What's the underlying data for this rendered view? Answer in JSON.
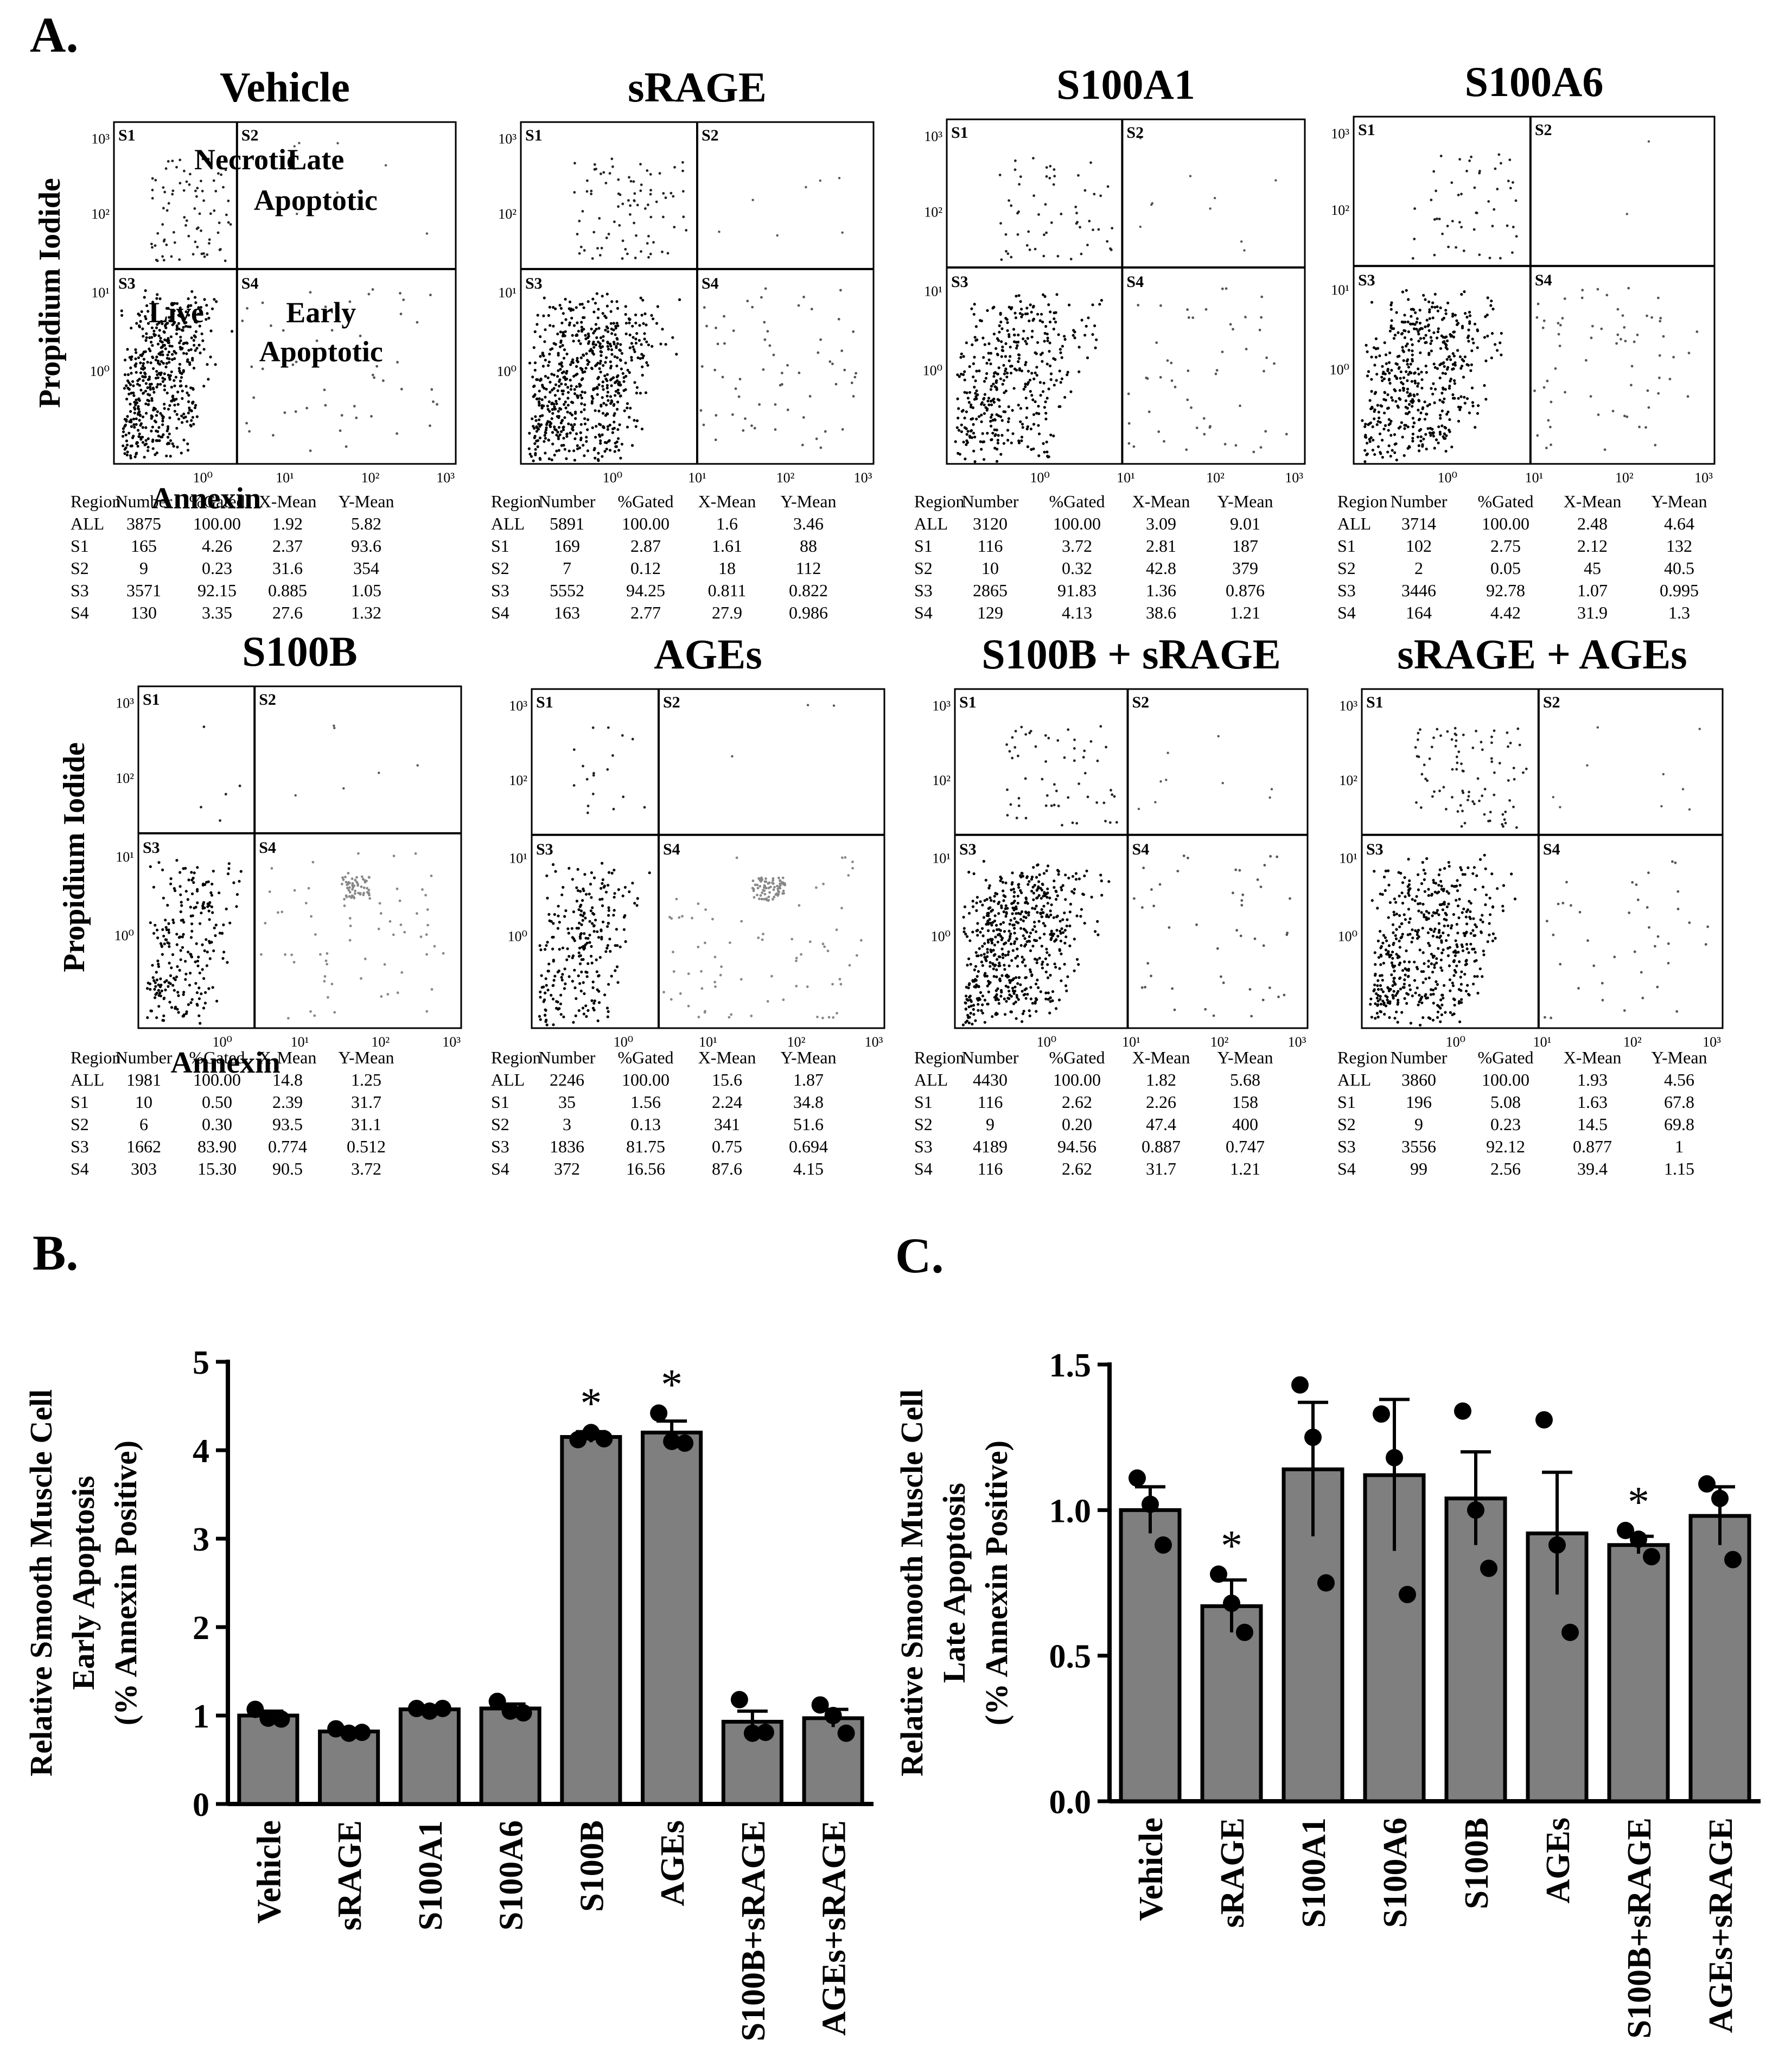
{
  "panel_labels": {
    "a": "A.",
    "b": "B.",
    "c": "C."
  },
  "flow": {
    "y_axis_label": "Propidium Iodide",
    "x_axis_label": "Annexin",
    "tick_labels": [
      "10⁰",
      "10¹",
      "10²",
      "10³"
    ],
    "quadrant_tags": [
      "S1",
      "S2",
      "S3",
      "S4"
    ],
    "quadrant_names": {
      "necrotic": "Necrotic",
      "late_l1": "Late",
      "late_l2": "Apoptotic",
      "live": "Live",
      "early_l1": "Early",
      "early_l2": "Apoptotic"
    },
    "table_header": [
      "Region",
      "Number",
      "%Gated",
      "X-Mean",
      "Y-Mean"
    ],
    "plots": [
      {
        "title": "Vehicle",
        "rows": [
          [
            "ALL",
            "3875",
            "100.00",
            "1.92",
            "5.82"
          ],
          [
            "S1",
            "165",
            "4.26",
            "2.37",
            "93.6"
          ],
          [
            "S2",
            "9",
            "0.23",
            "31.6",
            "354"
          ],
          [
            "S3",
            "3571",
            "92.15",
            "0.885",
            "1.05"
          ],
          [
            "S4",
            "130",
            "3.35",
            "27.6",
            "1.32"
          ]
        ]
      },
      {
        "title": "sRAGE",
        "rows": [
          [
            "ALL",
            "5891",
            "100.00",
            "1.6",
            "3.46"
          ],
          [
            "S1",
            "169",
            "2.87",
            "1.61",
            "88"
          ],
          [
            "S2",
            "7",
            "0.12",
            "18",
            "112"
          ],
          [
            "S3",
            "5552",
            "94.25",
            "0.811",
            "0.822"
          ],
          [
            "S4",
            "163",
            "2.77",
            "27.9",
            "0.986"
          ]
        ]
      },
      {
        "title": "S100A1",
        "rows": [
          [
            "ALL",
            "3120",
            "100.00",
            "3.09",
            "9.01"
          ],
          [
            "S1",
            "116",
            "3.72",
            "2.81",
            "187"
          ],
          [
            "S2",
            "10",
            "0.32",
            "42.8",
            "379"
          ],
          [
            "S3",
            "2865",
            "91.83",
            "1.36",
            "0.876"
          ],
          [
            "S4",
            "129",
            "4.13",
            "38.6",
            "1.21"
          ]
        ]
      },
      {
        "title": "S100A6",
        "rows": [
          [
            "ALL",
            "3714",
            "100.00",
            "2.48",
            "4.64"
          ],
          [
            "S1",
            "102",
            "2.75",
            "2.12",
            "132"
          ],
          [
            "S2",
            "2",
            "0.05",
            "45",
            "40.5"
          ],
          [
            "S3",
            "3446",
            "92.78",
            "1.07",
            "0.995"
          ],
          [
            "S4",
            "164",
            "4.42",
            "31.9",
            "1.3"
          ]
        ]
      },
      {
        "title": "S100B",
        "rows": [
          [
            "ALL",
            "1981",
            "100.00",
            "14.8",
            "1.25"
          ],
          [
            "S1",
            "10",
            "0.50",
            "2.39",
            "31.7"
          ],
          [
            "S2",
            "6",
            "0.30",
            "93.5",
            "31.1"
          ],
          [
            "S3",
            "1662",
            "83.90",
            "0.774",
            "0.512"
          ],
          [
            "S4",
            "303",
            "15.30",
            "90.5",
            "3.72"
          ]
        ]
      },
      {
        "title": "AGEs",
        "rows": [
          [
            "ALL",
            "2246",
            "100.00",
            "15.6",
            "1.87"
          ],
          [
            "S1",
            "35",
            "1.56",
            "2.24",
            "34.8"
          ],
          [
            "S2",
            "3",
            "0.13",
            "341",
            "51.6"
          ],
          [
            "S3",
            "1836",
            "81.75",
            "0.75",
            "0.694"
          ],
          [
            "S4",
            "372",
            "16.56",
            "87.6",
            "4.15"
          ]
        ]
      },
      {
        "title": "S100B + sRAGE",
        "rows": [
          [
            "ALL",
            "4430",
            "100.00",
            "1.82",
            "5.68"
          ],
          [
            "S1",
            "116",
            "2.62",
            "2.26",
            "158"
          ],
          [
            "S2",
            "9",
            "0.20",
            "47.4",
            "400"
          ],
          [
            "S3",
            "4189",
            "94.56",
            "0.887",
            "0.747"
          ],
          [
            "S4",
            "116",
            "2.62",
            "31.7",
            "1.21"
          ]
        ]
      },
      {
        "title": "sRAGE + AGEs",
        "rows": [
          [
            "ALL",
            "3860",
            "100.00",
            "1.93",
            "4.56"
          ],
          [
            "S1",
            "196",
            "5.08",
            "1.63",
            "67.8"
          ],
          [
            "S2",
            "9",
            "0.23",
            "14.5",
            "69.8"
          ],
          [
            "S3",
            "3556",
            "92.12",
            "0.877",
            "1"
          ],
          [
            "S4",
            "99",
            "2.56",
            "39.4",
            "1.15"
          ]
        ]
      }
    ]
  },
  "chart_data": [
    {
      "type": "bar",
      "panel": "B.",
      "categories": [
        "Vehicle",
        "sRAGE",
        "S100A1",
        "S100A6",
        "S100B",
        "AGEs",
        "S100B+sRAGE",
        "AGEs+sRAGE"
      ],
      "values": [
        1.0,
        0.82,
        1.07,
        1.08,
        4.15,
        4.2,
        0.93,
        0.97
      ],
      "sem": [
        0.05,
        0.03,
        0.03,
        0.05,
        0.06,
        0.13,
        0.12,
        0.1
      ],
      "points": [
        [
          1.07,
          0.97,
          0.96
        ],
        [
          0.85,
          0.8,
          0.81
        ],
        [
          1.08,
          1.05,
          1.08
        ],
        [
          1.16,
          1.05,
          1.03
        ],
        [
          4.12,
          4.2,
          4.13
        ],
        [
          4.42,
          4.1,
          4.08
        ],
        [
          1.18,
          0.8,
          0.81
        ],
        [
          1.12,
          1.0,
          0.8
        ]
      ],
      "significant": [
        false,
        false,
        false,
        false,
        true,
        true,
        false,
        false
      ],
      "significance_marker": "*",
      "ylabel": [
        "Relative Smooth Muscle Cell",
        "Early Apoptosis",
        "(% Annexin Positive)"
      ],
      "ylim": [
        0,
        5
      ],
      "yticks": [
        0,
        1,
        2,
        3,
        4,
        5
      ],
      "ytick_labels": [
        "0",
        "1",
        "2",
        "3",
        "4",
        "5"
      ]
    },
    {
      "type": "bar",
      "panel": "C.",
      "categories": [
        "Vehicle",
        "sRAGE",
        "S100A1",
        "S100A6",
        "S100B",
        "AGEs",
        "S100B+sRAGE",
        "AGEs+sRAGE"
      ],
      "values": [
        1.0,
        0.67,
        1.14,
        1.12,
        1.04,
        0.92,
        0.88,
        0.98
      ],
      "sem": [
        0.08,
        0.09,
        0.23,
        0.26,
        0.16,
        0.21,
        0.03,
        0.1
      ],
      "points": [
        [
          1.11,
          1.02,
          0.88
        ],
        [
          0.78,
          0.68,
          0.58
        ],
        [
          1.43,
          1.25,
          0.75
        ],
        [
          1.33,
          1.18,
          0.71
        ],
        [
          1.34,
          1.0,
          0.8
        ],
        [
          1.31,
          0.88,
          0.58
        ],
        [
          0.93,
          0.9,
          0.84
        ],
        [
          1.09,
          1.04,
          0.83
        ]
      ],
      "significant": [
        false,
        true,
        false,
        false,
        false,
        false,
        true,
        false
      ],
      "significance_marker": "*",
      "ylabel": [
        "Relative Smooth Muscle Cell",
        "Late Apoptosis",
        "(% Annexin Positive)"
      ],
      "ylim": [
        0,
        1.5
      ],
      "yticks": [
        0,
        0.5,
        1.0,
        1.5
      ],
      "ytick_labels": [
        "0.0",
        "0.5",
        "1.0",
        "1.5"
      ]
    }
  ]
}
